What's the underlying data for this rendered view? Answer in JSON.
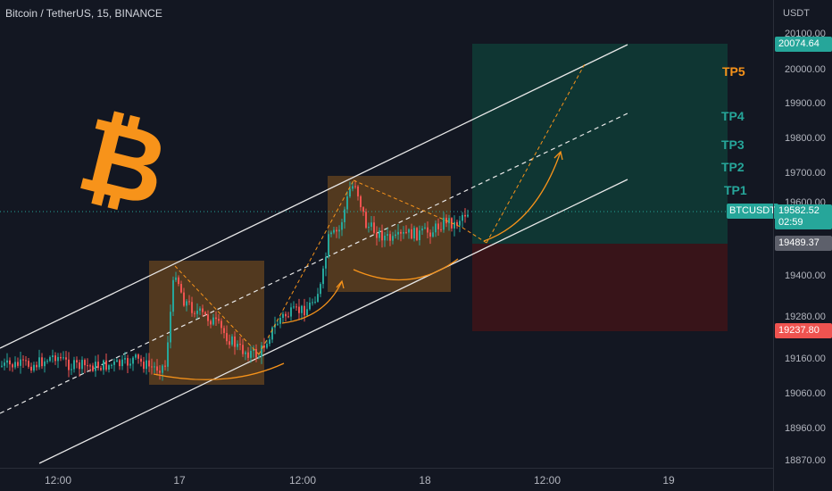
{
  "header": {
    "title": "Bitcoin / TetherUS, 15, BINANCE"
  },
  "price_axis": {
    "unit": "USDT",
    "ticks": [
      "20100.00",
      "20000.00",
      "19900.00",
      "19800.00",
      "19700.00",
      "19600.00",
      "19400.00",
      "19280.00",
      "19160.00",
      "19060.00",
      "18960.00",
      "18870.00"
    ],
    "tags": {
      "target": "20074.64",
      "current": "19582.52",
      "countdown": "02:59",
      "entry": "19489.37",
      "stop": "19237.80"
    }
  },
  "time_axis": {
    "ticks": [
      "12:00",
      "17",
      "12:00",
      "18",
      "12:00",
      "19"
    ]
  },
  "symbol": "BTCUSDT",
  "targets": [
    "TP5",
    "TP4",
    "TP3",
    "TP2",
    "TP1"
  ],
  "colors": {
    "background": "#131722",
    "up": "#26a69a",
    "down": "#ef5350",
    "bitcoin_orange": "#f7931a",
    "profit_zone": "#0f3a35",
    "loss_zone": "#3a1419"
  },
  "icons": {
    "logo": "bitcoin-logo-icon"
  }
}
